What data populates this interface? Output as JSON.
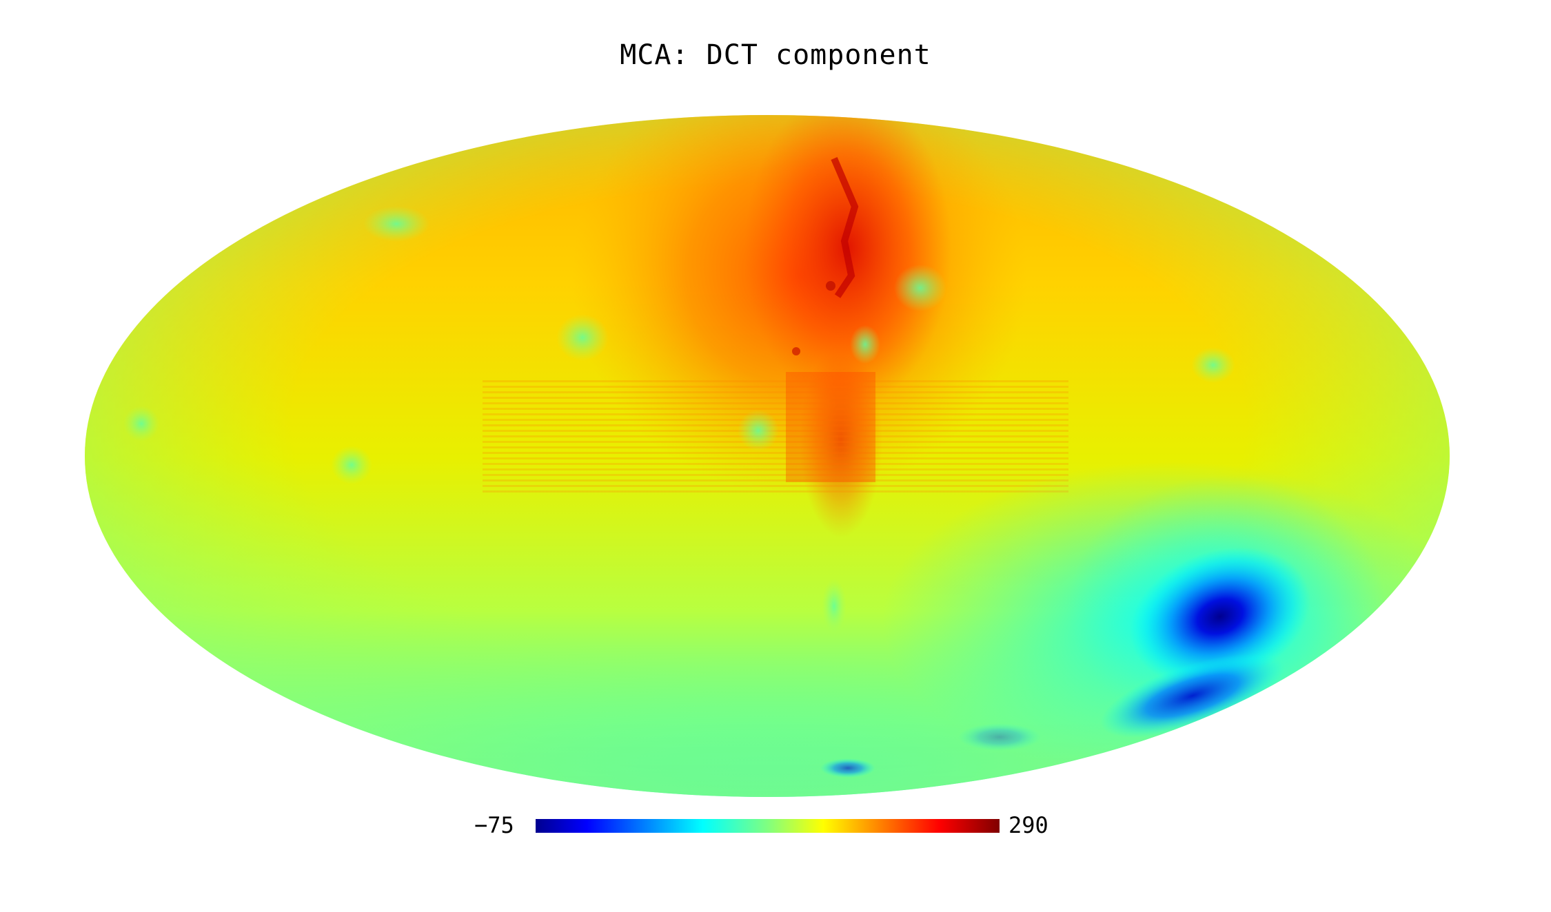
{
  "title": "MCA: DCT component",
  "projection": "mollweide",
  "colormap": {
    "name": "jet",
    "min_label": "−75",
    "max_label": "290",
    "min_value": -75,
    "max_value": 290,
    "stops": [
      "#00008f",
      "#0000ff",
      "#0080ff",
      "#00ffff",
      "#80ff80",
      "#ffff00",
      "#ff8000",
      "#ff0000",
      "#800000"
    ]
  },
  "features": {
    "background_level": "yellow-green",
    "galactic_plane_striping": true,
    "cold_spot": "deep blue minimum in lower right quadrant",
    "hot_region": "red/orange band along upper center"
  }
}
